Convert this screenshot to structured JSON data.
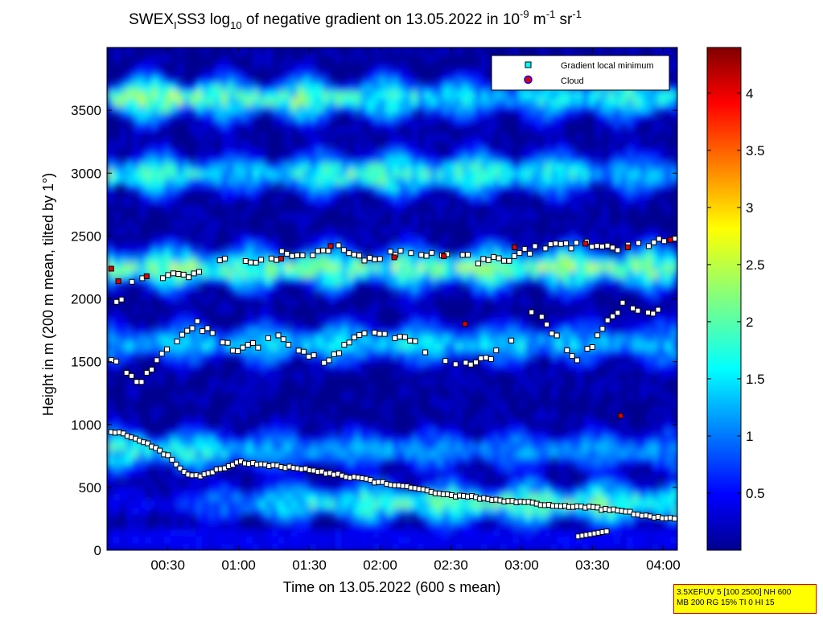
{
  "title": {
    "prefix": "SWEX",
    "sub_i": "I",
    "mid": "SS3 log",
    "sub_10": "10",
    "text": " of negative gradient on 13.05.2022 in 10",
    "sup1": "-9",
    "unit_m": " m",
    "sup2": "-1",
    "unit_sr": " sr",
    "sup3": "-1"
  },
  "info_box": {
    "line1": "3.5XEFUV 5 [100 2500] NH 600",
    "line2": "MB 200 RG 15% TI 0 HI 15",
    "bg_color": "#ffff00",
    "border_color": "#d00000"
  },
  "chart_data": {
    "type": "heatmap",
    "xlabel": "Time on 13.05.2022 (600 s mean)",
    "ylabel": "Height in m (200 m mean, tilted by 1°)",
    "xlim_hours": [
      0.07,
      4.1
    ],
    "ylim": [
      0,
      4000
    ],
    "x_ticks": [
      {
        "label": "00:30",
        "hours": 0.5
      },
      {
        "label": "01:00",
        "hours": 1.0
      },
      {
        "label": "01:30",
        "hours": 1.5
      },
      {
        "label": "02:00",
        "hours": 2.0
      },
      {
        "label": "02:30",
        "hours": 2.5
      },
      {
        "label": "03:00",
        "hours": 3.0
      },
      {
        "label": "03:30",
        "hours": 3.5
      },
      {
        "label": "04:00",
        "hours": 4.0
      }
    ],
    "y_ticks": [
      0,
      500,
      1000,
      1500,
      2000,
      2500,
      3000,
      3500
    ],
    "colorbar": {
      "min": 0,
      "max": 4.4,
      "colormap": "jet",
      "ticks": [
        "0.5",
        "1",
        "1.5",
        "2",
        "2.5",
        "3",
        "3.5",
        "4"
      ]
    },
    "legend": {
      "position": "top-right",
      "entries": [
        {
          "label": "Gradient local minimum",
          "marker": "square",
          "color": "#ffffff"
        },
        {
          "label": "Cloud",
          "marker": "circle",
          "color": "#e00000"
        }
      ]
    },
    "grid": false,
    "layers": [
      {
        "height": 380,
        "values": [
          0.6,
          0.7,
          1.4,
          2.0,
          2.2,
          2.3,
          2.4,
          2.5,
          2.4,
          2.3
        ]
      },
      {
        "height": 800,
        "values": [
          2.2,
          2.1,
          1.8,
          1.6,
          1.5,
          1.5,
          1.4,
          1.5,
          1.4,
          1.5
        ]
      },
      {
        "height": 1650,
        "values": [
          1.6,
          1.8,
          1.7,
          1.9,
          1.8,
          1.9,
          1.7,
          1.8,
          1.6,
          1.7
        ]
      },
      {
        "height": 2250,
        "values": [
          2.6,
          2.6,
          2.5,
          2.6,
          2.5,
          2.6,
          2.5,
          2.6,
          2.6,
          2.6
        ]
      },
      {
        "height": 3000,
        "values": [
          2.4,
          2.2,
          1.5,
          2.0,
          2.5,
          2.2,
          2.3,
          2.0,
          1.7,
          1.5
        ]
      },
      {
        "height": 3600,
        "values": [
          2.5,
          2.8,
          2.3,
          2.5,
          2.2,
          2.2,
          1.6,
          2.0,
          2.1,
          2.1
        ]
      }
    ],
    "gradient_minimum_lines": [
      {
        "name": "boundary layer top",
        "x_hours": [
          0.1,
          0.3,
          0.5,
          0.62,
          0.72,
          1.0,
          1.5,
          2.0,
          2.5,
          3.0,
          3.5,
          4.08
        ],
        "y": [
          950,
          880,
          750,
          620,
          580,
          700,
          640,
          540,
          440,
          380,
          340,
          245
        ]
      },
      {
        "name": "lower cloud layer",
        "x_hours": [
          0.1,
          0.2,
          0.3,
          0.5,
          0.7,
          1.0,
          1.3,
          1.6,
          1.9,
          2.2,
          2.5,
          2.8,
          3.1,
          3.4,
          3.7,
          4.0
        ],
        "y": [
          1540,
          1400,
          1320,
          1600,
          1800,
          1580,
          1700,
          1500,
          1750,
          1680,
          1450,
          1550,
          1900,
          1480,
          1950,
          1900
        ]
      },
      {
        "name": "upper cloud layer",
        "x_hours": [
          0.1,
          0.25,
          0.45,
          0.7,
          0.9,
          1.1,
          1.3,
          1.5,
          1.7,
          1.9,
          2.1,
          2.3,
          2.5,
          2.7,
          2.9,
          3.1,
          3.3,
          3.5,
          3.7,
          3.9,
          4.08
        ],
        "y": [
          1900,
          2120,
          2180,
          2200,
          2300,
          2280,
          2350,
          2330,
          2400,
          2310,
          2380,
          2330,
          2360,
          2300,
          2320,
          2400,
          2420,
          2440,
          2410,
          2450,
          2470
        ]
      }
    ],
    "cloud_points": [
      {
        "x_hours": 0.1,
        "y": 2240
      },
      {
        "x_hours": 0.15,
        "y": 2140
      },
      {
        "x_hours": 0.35,
        "y": 2180
      },
      {
        "x_hours": 1.3,
        "y": 2320
      },
      {
        "x_hours": 1.65,
        "y": 2420
      },
      {
        "x_hours": 2.1,
        "y": 2330
      },
      {
        "x_hours": 2.45,
        "y": 2340
      },
      {
        "x_hours": 2.95,
        "y": 2410
      },
      {
        "x_hours": 3.45,
        "y": 2440
      },
      {
        "x_hours": 3.75,
        "y": 2410
      },
      {
        "x_hours": 4.05,
        "y": 2470
      },
      {
        "x_hours": 2.6,
        "y": 1800
      },
      {
        "x_hours": 3.7,
        "y": 1070
      }
    ],
    "low_cluster": {
      "x_hours": [
        3.4,
        3.6
      ],
      "y": [
        110,
        150
      ]
    }
  }
}
